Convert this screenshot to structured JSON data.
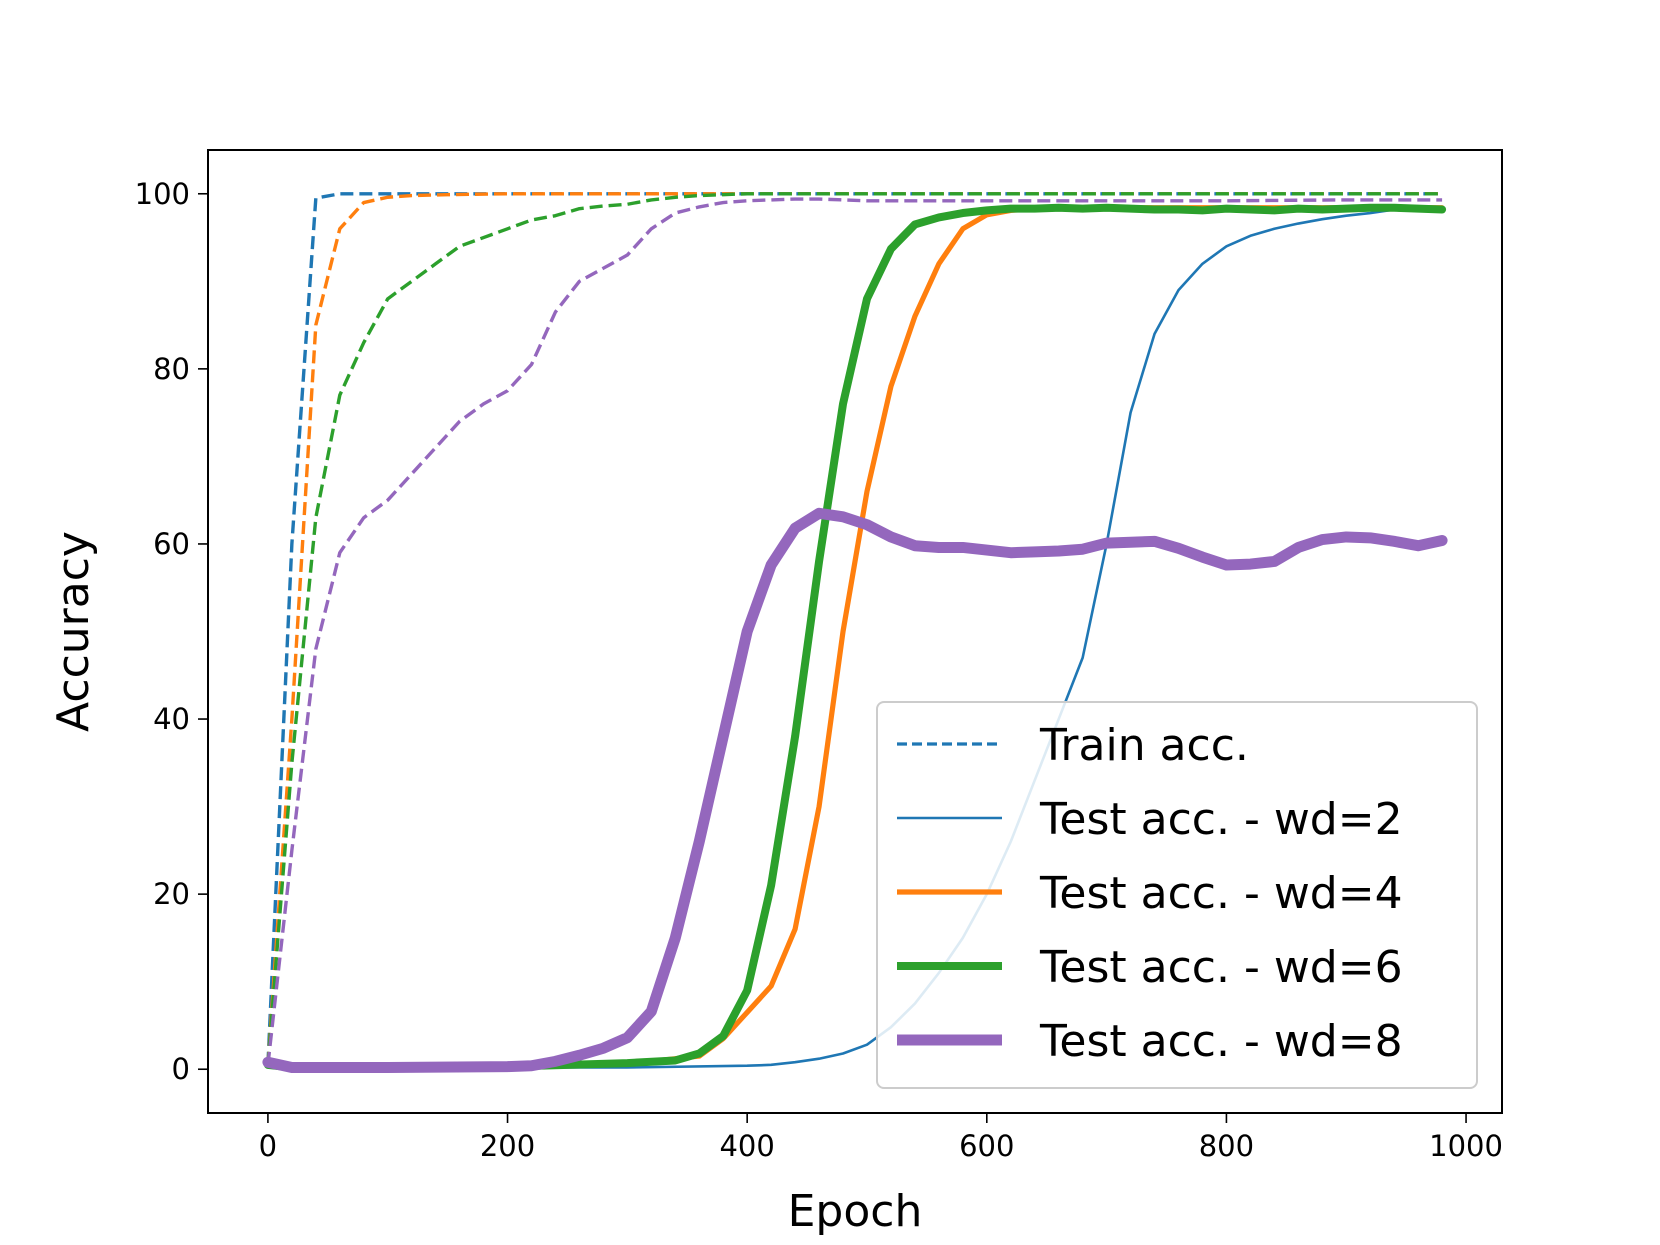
{
  "chart_data": {
    "type": "line",
    "title": "",
    "xlabel": "Epoch",
    "ylabel": "Accuracy",
    "xlim": [
      -50,
      1030
    ],
    "ylim": [
      -5,
      105
    ],
    "xticks": [
      "0",
      "200",
      "400",
      "600",
      "800",
      "1000"
    ],
    "yticks": [
      "0",
      "20",
      "40",
      "60",
      "80",
      "100"
    ],
    "grid": false,
    "legend_position": "bottom-right",
    "legend": [
      {
        "label": "Train acc.",
        "style": "dashed",
        "color": "#1f77b4",
        "width": "thin"
      },
      {
        "label": "Test acc. - wd=2",
        "style": "solid",
        "color": "#1f77b4",
        "width": "thin"
      },
      {
        "label": "Test acc. - wd=4",
        "style": "solid",
        "color": "#ff7f0e",
        "width": "medium"
      },
      {
        "label": "Test acc. - wd=6",
        "style": "solid",
        "color": "#2ca02c",
        "width": "thick"
      },
      {
        "label": "Test acc. - wd=8",
        "style": "solid",
        "color": "#9467bd",
        "width": "thickest"
      }
    ],
    "series": [
      {
        "kind": "train",
        "wd": 2,
        "color": "#1f77b4",
        "style": "dashed",
        "x": [
          0,
          20,
          40,
          60,
          80,
          100,
          150,
          200,
          300,
          400,
          500,
          600,
          700,
          800,
          900,
          980
        ],
        "y": [
          0.5,
          60,
          99.5,
          100,
          100,
          100,
          100,
          100,
          100,
          100,
          100,
          100,
          100,
          100,
          100,
          100
        ]
      },
      {
        "kind": "train",
        "wd": 4,
        "color": "#ff7f0e",
        "style": "dashed",
        "x": [
          0,
          20,
          40,
          60,
          80,
          100,
          120,
          150,
          200,
          300,
          400,
          500,
          600,
          700,
          800,
          900,
          980
        ],
        "y": [
          0.5,
          40,
          85,
          96,
          99,
          99.6,
          99.8,
          99.9,
          100,
          100,
          100,
          100,
          100,
          100,
          100,
          100,
          100
        ]
      },
      {
        "kind": "train",
        "wd": 6,
        "color": "#2ca02c",
        "style": "dashed",
        "x": [
          0,
          20,
          40,
          60,
          80,
          100,
          120,
          140,
          160,
          180,
          200,
          220,
          240,
          260,
          280,
          300,
          320,
          340,
          360,
          380,
          400,
          500,
          600,
          700,
          800,
          900,
          980
        ],
        "y": [
          0.5,
          35,
          63,
          77,
          83,
          88,
          90,
          92,
          94,
          95,
          96,
          97,
          97.5,
          98.3,
          98.6,
          98.8,
          99.3,
          99.6,
          99.8,
          99.9,
          100,
          100,
          100,
          100,
          100,
          100,
          100
        ]
      },
      {
        "kind": "train",
        "wd": 8,
        "color": "#9467bd",
        "style": "dashed",
        "x": [
          0,
          20,
          40,
          60,
          80,
          100,
          120,
          140,
          160,
          180,
          200,
          220,
          240,
          260,
          280,
          300,
          320,
          340,
          360,
          380,
          400,
          420,
          440,
          460,
          480,
          500,
          600,
          700,
          800,
          900,
          980
        ],
        "y": [
          0.5,
          25,
          48,
          59,
          63,
          65,
          68,
          71,
          74,
          76,
          77.5,
          80.5,
          86.5,
          90,
          91.5,
          93,
          96,
          97.8,
          98.5,
          99,
          99.2,
          99.3,
          99.4,
          99.4,
          99.3,
          99.2,
          99.2,
          99.2,
          99.2,
          99.3,
          99.3
        ]
      },
      {
        "kind": "test",
        "wd": 2,
        "color": "#1f77b4",
        "style": "solid",
        "x": [
          0,
          20,
          100,
          200,
          300,
          400,
          420,
          440,
          460,
          480,
          500,
          520,
          540,
          560,
          580,
          600,
          620,
          640,
          660,
          680,
          700,
          720,
          740,
          760,
          780,
          800,
          820,
          840,
          860,
          880,
          900,
          920,
          940,
          960,
          980
        ],
        "y": [
          0.5,
          0.2,
          0.2,
          0.2,
          0.2,
          0.4,
          0.5,
          0.8,
          1.2,
          1.8,
          2.8,
          4.8,
          7.5,
          11,
          15,
          20,
          26,
          33,
          40,
          47,
          60,
          75,
          84,
          89,
          92,
          94,
          95.2,
          96,
          96.6,
          97.1,
          97.5,
          97.8,
          98.2,
          98.3,
          98.3
        ]
      },
      {
        "kind": "test",
        "wd": 4,
        "color": "#ff7f0e",
        "style": "solid",
        "x": [
          0,
          20,
          100,
          200,
          300,
          360,
          380,
          400,
          420,
          440,
          460,
          480,
          500,
          520,
          540,
          560,
          580,
          600,
          620,
          640,
          660,
          680,
          700,
          800,
          900,
          980
        ],
        "y": [
          0.5,
          0.2,
          0.2,
          0.3,
          0.6,
          1.5,
          3.5,
          6.5,
          9.5,
          16,
          30,
          50,
          66,
          78,
          86,
          92,
          96,
          97.6,
          98.1,
          98.3,
          98.4,
          98.4,
          98.4,
          98.4,
          98.4,
          98.4
        ]
      },
      {
        "kind": "test",
        "wd": 6,
        "color": "#2ca02c",
        "style": "solid",
        "x": [
          0,
          20,
          100,
          200,
          300,
          340,
          360,
          380,
          400,
          420,
          440,
          460,
          480,
          500,
          520,
          540,
          560,
          580,
          600,
          620,
          640,
          660,
          680,
          700,
          720,
          740,
          760,
          780,
          800,
          820,
          840,
          860,
          880,
          900,
          920,
          940,
          960,
          980
        ],
        "y": [
          0.5,
          0.2,
          0.2,
          0.3,
          0.7,
          1,
          1.8,
          3.8,
          9,
          21,
          38,
          58,
          76,
          88,
          93.7,
          96.5,
          97.3,
          97.8,
          98.1,
          98.3,
          98.3,
          98.4,
          98.3,
          98.4,
          98.3,
          98.2,
          98.2,
          98.1,
          98.3,
          98.2,
          98.1,
          98.3,
          98.2,
          98.3,
          98.4,
          98.4,
          98.3,
          98.2
        ]
      },
      {
        "kind": "test",
        "wd": 8,
        "color": "#9467bd",
        "style": "solid",
        "x": [
          0,
          20,
          100,
          200,
          220,
          240,
          260,
          280,
          300,
          320,
          340,
          360,
          380,
          400,
          420,
          440,
          460,
          480,
          500,
          520,
          540,
          560,
          580,
          600,
          620,
          640,
          660,
          680,
          700,
          720,
          740,
          760,
          780,
          800,
          820,
          840,
          860,
          880,
          900,
          920,
          940,
          960,
          980
        ],
        "y": [
          0.8,
          0.2,
          0.2,
          0.3,
          0.4,
          0.9,
          1.6,
          2.4,
          3.6,
          6.6,
          15,
          26,
          38,
          50,
          57.6,
          61.8,
          63.5,
          63.1,
          62.2,
          60.8,
          59.8,
          59.6,
          59.6,
          59.3,
          59.0,
          59.1,
          59.2,
          59.4,
          60.1,
          60.2,
          60.3,
          59.5,
          58.5,
          57.6,
          57.7,
          58.0,
          59.6,
          60.5,
          60.8,
          60.7,
          60.3,
          59.8,
          60.4
        ]
      }
    ]
  }
}
